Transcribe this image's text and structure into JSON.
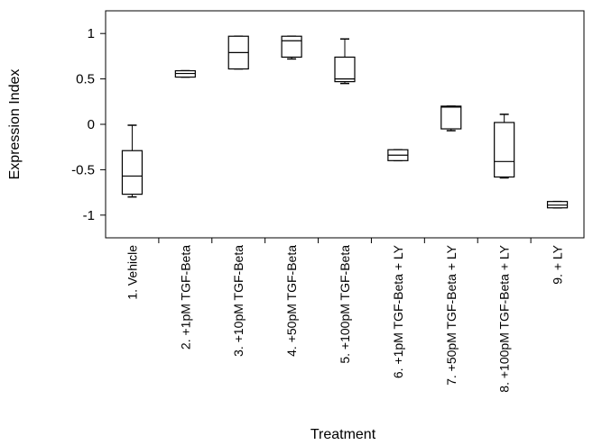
{
  "chart_data": {
    "type": "box",
    "xlabel": "Treatment",
    "ylabel": "Expression Index",
    "ylim": [
      -1.25,
      1.25
    ],
    "yticks": [
      {
        "value": 1,
        "label": "1"
      },
      {
        "value": 0.5,
        "label": "0.5"
      },
      {
        "value": 0,
        "label": "0"
      },
      {
        "value": -0.5,
        "label": "-0.5"
      },
      {
        "value": -1,
        "label": "-1"
      }
    ],
    "categories": [
      "1. Vehicle",
      "2. +1pM TGF-Beta",
      "3. +10pM TGF-Beta",
      "4. +50pM TGF-Beta",
      "5. +100pM TGF-Beta",
      "6. +1pM TGF-Beta + LY",
      "7. +50pM TGF-Beta + LY",
      "8. +100pM TGF-Beta + LY",
      "9. + LY"
    ],
    "boxes": [
      {
        "min": -0.8,
        "q1": -0.77,
        "median": -0.57,
        "q3": -0.29,
        "max": -0.01
      },
      {
        "min": 0.52,
        "q1": 0.52,
        "median": 0.56,
        "q3": 0.59,
        "max": 0.59
      },
      {
        "min": 0.61,
        "q1": 0.61,
        "median": 0.79,
        "q3": 0.97,
        "max": 0.97
      },
      {
        "min": 0.72,
        "q1": 0.74,
        "median": 0.92,
        "q3": 0.97,
        "max": 0.97
      },
      {
        "min": 0.45,
        "q1": 0.47,
        "median": 0.5,
        "q3": 0.74,
        "max": 0.94
      },
      {
        "min": -0.4,
        "q1": -0.4,
        "median": -0.34,
        "q3": -0.28,
        "max": -0.28
      },
      {
        "min": -0.07,
        "q1": -0.05,
        "median": 0.19,
        "q3": 0.2,
        "max": 0.2
      },
      {
        "min": -0.59,
        "q1": -0.58,
        "median": -0.41,
        "q3": 0.02,
        "max": 0.11
      },
      {
        "min": -0.92,
        "q1": -0.92,
        "median": -0.89,
        "q3": -0.85,
        "max": -0.85
      }
    ],
    "grid": false,
    "legend": "none",
    "colors": {
      "line": "#000000",
      "box_fill": "#ffffff"
    }
  }
}
